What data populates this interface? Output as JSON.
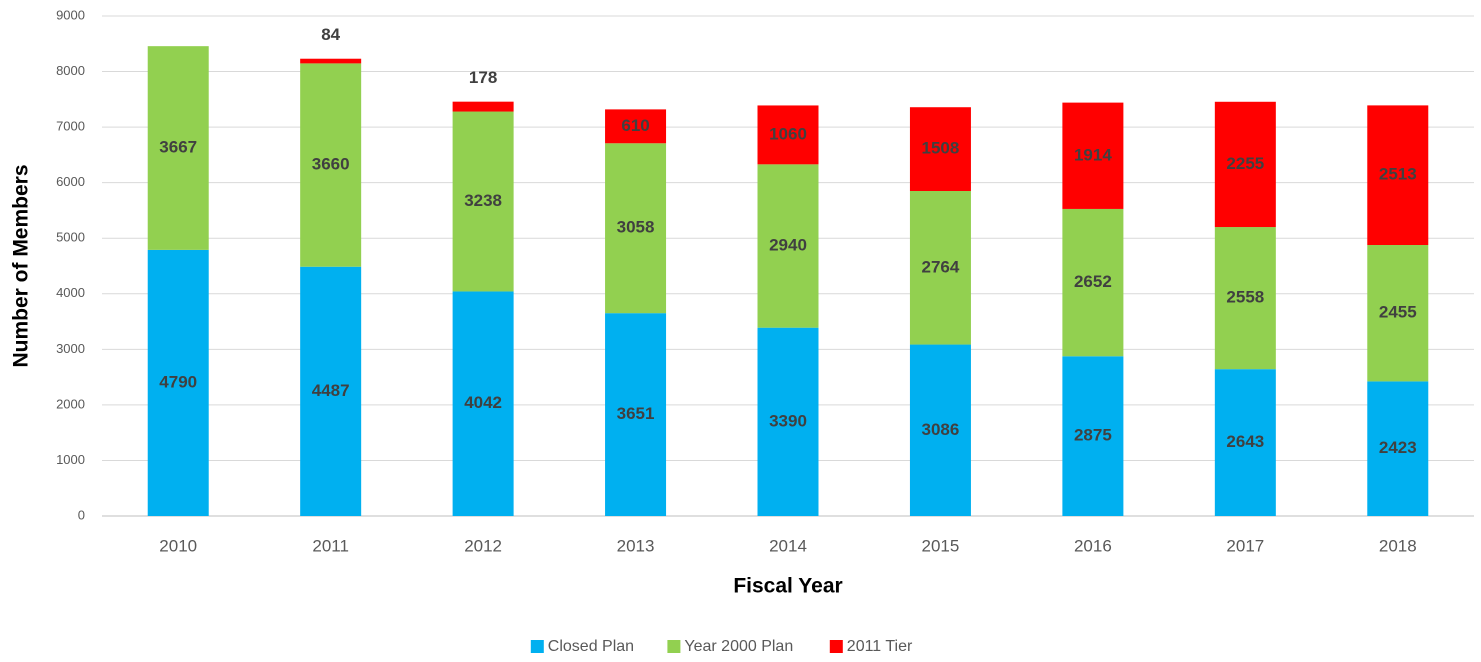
{
  "chart_data": {
    "type": "bar",
    "stacked": true,
    "x_label": "Fiscal Year",
    "y_label": "Number of Members",
    "categories": [
      "2010",
      "2011",
      "2012",
      "2013",
      "2014",
      "2015",
      "2016",
      "2017",
      "2018"
    ],
    "series": [
      {
        "name": "Closed Plan",
        "color": "#00b0f0",
        "values": [
          4790,
          4487,
          4042,
          3651,
          3390,
          3086,
          2875,
          2643,
          2423
        ]
      },
      {
        "name": "Year 2000 Plan",
        "color": "#92d050",
        "values": [
          3667,
          3660,
          3238,
          3058,
          2940,
          2764,
          2652,
          2558,
          2455
        ]
      },
      {
        "name": "2011 Tier",
        "color": "#ff0000",
        "values": [
          null,
          84,
          178,
          610,
          1060,
          1508,
          1914,
          2255,
          2513
        ]
      }
    ],
    "ylim": [
      0,
      9000
    ],
    "yticks": [
      0,
      1000,
      2000,
      3000,
      4000,
      5000,
      6000,
      7000,
      8000,
      9000
    ],
    "grid": true
  }
}
